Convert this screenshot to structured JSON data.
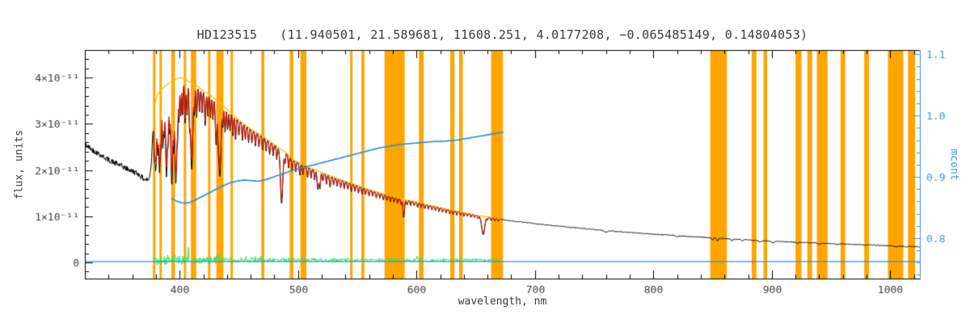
{
  "chart_data": {
    "type": "line",
    "title": "HD123515   (11.940501, 21.589681, 11608.251, 4.0177208, −0.065485149, 0.14804053)",
    "xlabel": "wavelength, nm",
    "ylabel_left": "flux, units",
    "ylabel_right": "mcont",
    "x_range": [
      320,
      1025
    ],
    "y_left_range": [
      -0.35,
      4.6
    ],
    "y_left_unit": "1e-11 flux units",
    "y_right_range": [
      0.734,
      1.107
    ],
    "x_major_ticks": [
      400,
      500,
      600,
      700,
      800,
      900,
      1000
    ],
    "x_minor_step": 20,
    "y_left_ticks": [
      {
        "value": 0,
        "label": "0"
      },
      {
        "value": 1,
        "label": "1×10⁻¹¹"
      },
      {
        "value": 2,
        "label": "2×10⁻¹¹"
      },
      {
        "value": 3,
        "label": "3×10⁻¹¹"
      },
      {
        "value": 4,
        "label": "4×10⁻¹¹"
      }
    ],
    "y_left_minor_step": 0.2,
    "y_right_ticks": [
      {
        "value": 0.8,
        "label": "0.8"
      },
      {
        "value": 0.9,
        "label": "0.9"
      },
      {
        "value": 1.0,
        "label": "1.0"
      },
      {
        "value": 1.1,
        "label": "1.1"
      }
    ],
    "y_right_minor_step": 0.02,
    "colors": {
      "observed": "#000000",
      "model": "#d81600",
      "continuum": "#f2c500",
      "residual": "#2ee65c",
      "mcont": "#2f8fdf",
      "right_axis": "#3a97e8",
      "mask": "#ffa500",
      "axis": "#000000",
      "axis_text": "#3c3c3c"
    },
    "series": [
      {
        "name": "observed-spectrum",
        "color": "#000000",
        "x_range": [
          320,
          1025
        ]
      },
      {
        "name": "model-fit",
        "color": "#d81600",
        "x_range": [
          378,
          671
        ]
      },
      {
        "name": "continuum-fit",
        "color": "#f2c500",
        "x_range": [
          378,
          671
        ]
      },
      {
        "name": "residual",
        "color": "#2ee65c",
        "x_range": [
          378,
          671
        ]
      },
      {
        "name": "mcont",
        "color": "#2f8fdf",
        "axis": "right",
        "x_range": [
          393,
          674
        ]
      },
      {
        "name": "zero-baseline",
        "color": "#2f8fdf",
        "x_range": [
          320,
          1025
        ]
      }
    ],
    "baseline_flux": 0.02,
    "model_range": [
      378,
      671
    ],
    "model_depth_factor": 0.88,
    "mask_bands": [
      [
        377.5,
        379.5
      ],
      [
        383,
        385
      ],
      [
        393,
        396
      ],
      [
        403.5,
        405.5
      ],
      [
        409.5,
        414
      ],
      [
        424,
        426
      ],
      [
        431,
        437
      ],
      [
        443,
        445
      ],
      [
        469,
        471.5
      ],
      [
        493,
        496
      ],
      [
        502,
        507
      ],
      [
        544,
        546
      ],
      [
        553.5,
        556
      ],
      [
        573,
        590
      ],
      [
        602,
        606
      ],
      [
        628.5,
        632
      ],
      [
        636,
        639
      ],
      [
        663,
        673
      ],
      [
        848,
        862
      ],
      [
        883,
        887
      ],
      [
        893,
        896
      ],
      [
        920,
        925
      ],
      [
        930,
        934
      ],
      [
        938,
        947
      ],
      [
        958,
        962
      ],
      [
        978,
        982
      ],
      [
        998,
        1011
      ],
      [
        1015,
        1021
      ]
    ],
    "continuum_anchors": [
      [
        320,
        2.55
      ],
      [
        330,
        2.38
      ],
      [
        340,
        2.22
      ],
      [
        350,
        2.1
      ],
      [
        358,
        2.0
      ],
      [
        365,
        1.92
      ],
      [
        370,
        1.8
      ],
      [
        374,
        1.78
      ],
      [
        376,
        2.1
      ],
      [
        377.5,
        2.9
      ],
      [
        379,
        3.4
      ],
      [
        381,
        3.6
      ],
      [
        384,
        3.72
      ],
      [
        388,
        3.8
      ],
      [
        392,
        3.88
      ],
      [
        396,
        3.94
      ],
      [
        400,
        3.98
      ],
      [
        404,
        3.96
      ],
      [
        408,
        3.9
      ],
      [
        412,
        3.84
      ],
      [
        416,
        3.78
      ],
      [
        420,
        3.7
      ],
      [
        425,
        3.62
      ],
      [
        430,
        3.52
      ],
      [
        435,
        3.42
      ],
      [
        440,
        3.3
      ],
      [
        445,
        3.18
      ],
      [
        450,
        3.07
      ],
      [
        455,
        2.97
      ],
      [
        460,
        2.88
      ],
      [
        465,
        2.8
      ],
      [
        470,
        2.72
      ],
      [
        475,
        2.63
      ],
      [
        480,
        2.54
      ],
      [
        485,
        2.45
      ],
      [
        490,
        2.36
      ],
      [
        495,
        2.22
      ],
      [
        500,
        2.16
      ],
      [
        505,
        2.1
      ],
      [
        510,
        2.04
      ],
      [
        515,
        1.99
      ],
      [
        520,
        1.94
      ],
      [
        525,
        1.89
      ],
      [
        530,
        1.84
      ],
      [
        535,
        1.79
      ],
      [
        540,
        1.75
      ],
      [
        545,
        1.7
      ],
      [
        550,
        1.66
      ],
      [
        555,
        1.61
      ],
      [
        560,
        1.57
      ],
      [
        565,
        1.53
      ],
      [
        570,
        1.49
      ],
      [
        575,
        1.45
      ],
      [
        580,
        1.42
      ],
      [
        585,
        1.38
      ],
      [
        590,
        1.35
      ],
      [
        595,
        1.33
      ],
      [
        600,
        1.3
      ],
      [
        605,
        1.27
      ],
      [
        610,
        1.24
      ],
      [
        615,
        1.21
      ],
      [
        620,
        1.18
      ],
      [
        625,
        1.15
      ],
      [
        630,
        1.12
      ],
      [
        635,
        1.1
      ],
      [
        640,
        1.07
      ],
      [
        645,
        1.05
      ],
      [
        650,
        1.02
      ],
      [
        655,
        1.0
      ],
      [
        660,
        0.98
      ],
      [
        665,
        0.96
      ],
      [
        670,
        0.94
      ],
      [
        675,
        0.92
      ],
      [
        680,
        0.9
      ],
      [
        690,
        0.87
      ],
      [
        700,
        0.84
      ],
      [
        710,
        0.81
      ],
      [
        720,
        0.79
      ],
      [
        730,
        0.76
      ],
      [
        740,
        0.74
      ],
      [
        750,
        0.71
      ],
      [
        760,
        0.69
      ],
      [
        770,
        0.67
      ],
      [
        780,
        0.65
      ],
      [
        790,
        0.63
      ],
      [
        800,
        0.61
      ],
      [
        810,
        0.6
      ],
      [
        820,
        0.58
      ],
      [
        830,
        0.56
      ],
      [
        840,
        0.55
      ],
      [
        850,
        0.53
      ],
      [
        860,
        0.52
      ],
      [
        870,
        0.5
      ],
      [
        880,
        0.49
      ],
      [
        890,
        0.47
      ],
      [
        900,
        0.46
      ],
      [
        910,
        0.45
      ],
      [
        920,
        0.44
      ],
      [
        930,
        0.43
      ],
      [
        940,
        0.42
      ],
      [
        950,
        0.41
      ],
      [
        960,
        0.4
      ],
      [
        970,
        0.39
      ],
      [
        980,
        0.38
      ],
      [
        990,
        0.37
      ],
      [
        1000,
        0.36
      ],
      [
        1010,
        0.35
      ],
      [
        1025,
        0.34
      ]
    ],
    "absorption_lines": [
      [
        378.8,
        0.3,
        0.7
      ],
      [
        380.0,
        0.42,
        0.9
      ],
      [
        381.5,
        0.3,
        0.7
      ],
      [
        383.0,
        0.48,
        1.0
      ],
      [
        384.3,
        0.28,
        0.6
      ],
      [
        385.8,
        0.35,
        0.8
      ],
      [
        387.0,
        0.25,
        0.6
      ],
      [
        388.9,
        0.52,
        1.1
      ],
      [
        390.3,
        0.28,
        0.6
      ],
      [
        391.5,
        0.25,
        0.6
      ],
      [
        393.4,
        0.58,
        1.2
      ],
      [
        395.0,
        0.28,
        0.6
      ],
      [
        396.8,
        0.58,
        1.2
      ],
      [
        398.3,
        0.25,
        0.6
      ],
      [
        399.5,
        0.22,
        0.6
      ],
      [
        401.0,
        0.22,
        0.6
      ],
      [
        402.5,
        0.2,
        0.6
      ],
      [
        404.6,
        0.24,
        0.7
      ],
      [
        406.3,
        0.2,
        0.6
      ],
      [
        408.4,
        0.22,
        0.7
      ],
      [
        410.2,
        0.48,
        1.3
      ],
      [
        412.5,
        0.15,
        0.6
      ],
      [
        414.4,
        0.18,
        0.6
      ],
      [
        416.8,
        0.14,
        0.6
      ],
      [
        419.0,
        0.13,
        0.6
      ],
      [
        421.6,
        0.2,
        0.7
      ],
      [
        423.8,
        0.14,
        0.6
      ],
      [
        426.0,
        0.13,
        0.6
      ],
      [
        428.0,
        0.14,
        0.6
      ],
      [
        430.8,
        0.28,
        0.9
      ],
      [
        432.6,
        0.18,
        0.7
      ],
      [
        434.0,
        0.46,
        1.3
      ],
      [
        436.5,
        0.13,
        0.6
      ],
      [
        438.4,
        0.16,
        0.6
      ],
      [
        440.5,
        0.13,
        0.6
      ],
      [
        442.5,
        0.12,
        0.6
      ],
      [
        445.0,
        0.14,
        0.6
      ],
      [
        447.2,
        0.16,
        0.6
      ],
      [
        450.0,
        0.11,
        0.6
      ],
      [
        453.0,
        0.12,
        0.6
      ],
      [
        455.5,
        0.1,
        0.6
      ],
      [
        458.2,
        0.11,
        0.6
      ],
      [
        461.0,
        0.1,
        0.6
      ],
      [
        464.0,
        0.11,
        0.6
      ],
      [
        467.0,
        0.1,
        0.6
      ],
      [
        470.0,
        0.11,
        0.6
      ],
      [
        473.0,
        0.1,
        0.6
      ],
      [
        476.0,
        0.11,
        0.6
      ],
      [
        479.0,
        0.1,
        0.6
      ],
      [
        482.0,
        0.11,
        0.6
      ],
      [
        486.1,
        0.48,
        1.4
      ],
      [
        489.0,
        0.1,
        0.6
      ],
      [
        492.0,
        0.12,
        0.6
      ],
      [
        495.0,
        0.1,
        0.6
      ],
      [
        498.0,
        0.11,
        0.6
      ],
      [
        501.5,
        0.12,
        0.7
      ],
      [
        504.2,
        0.1,
        0.6
      ],
      [
        508.0,
        0.11,
        0.6
      ],
      [
        511.0,
        0.1,
        0.6
      ],
      [
        514.0,
        0.11,
        0.6
      ],
      [
        516.7,
        0.2,
        0.9
      ],
      [
        518.4,
        0.18,
        0.8
      ],
      [
        521.0,
        0.09,
        0.6
      ],
      [
        524.0,
        0.11,
        0.6
      ],
      [
        527.0,
        0.13,
        0.7
      ],
      [
        530.0,
        0.09,
        0.6
      ],
      [
        533.0,
        0.1,
        0.6
      ],
      [
        536.0,
        0.09,
        0.6
      ],
      [
        539.0,
        0.1,
        0.6
      ],
      [
        542.0,
        0.09,
        0.6
      ],
      [
        545.0,
        0.1,
        0.6
      ],
      [
        548.0,
        0.09,
        0.6
      ],
      [
        551.0,
        0.09,
        0.6
      ],
      [
        554.0,
        0.09,
        0.6
      ],
      [
        557.0,
        0.08,
        0.6
      ],
      [
        560.0,
        0.09,
        0.6
      ],
      [
        563.0,
        0.08,
        0.6
      ],
      [
        566.0,
        0.08,
        0.6
      ],
      [
        569.0,
        0.08,
        0.6
      ],
      [
        572.0,
        0.08,
        0.6
      ],
      [
        575.0,
        0.08,
        0.6
      ],
      [
        578.0,
        0.08,
        0.6
      ],
      [
        581.0,
        0.08,
        0.6
      ],
      [
        584.0,
        0.08,
        0.6
      ],
      [
        587.0,
        0.09,
        0.6
      ],
      [
        589.2,
        0.28,
        0.9
      ],
      [
        592.0,
        0.08,
        0.6
      ],
      [
        595.0,
        0.08,
        0.6
      ],
      [
        598.0,
        0.07,
        0.6
      ],
      [
        601.0,
        0.08,
        0.6
      ],
      [
        604.0,
        0.07,
        0.6
      ],
      [
        607.0,
        0.08,
        0.6
      ],
      [
        610.0,
        0.07,
        0.6
      ],
      [
        613.0,
        0.07,
        0.6
      ],
      [
        616.0,
        0.07,
        0.6
      ],
      [
        619.0,
        0.07,
        0.6
      ],
      [
        622.0,
        0.07,
        0.6
      ],
      [
        625.0,
        0.07,
        0.6
      ],
      [
        628.0,
        0.07,
        0.6
      ],
      [
        631.0,
        0.07,
        0.6
      ],
      [
        634.0,
        0.07,
        0.6
      ],
      [
        637.0,
        0.07,
        0.6
      ],
      [
        640.0,
        0.07,
        0.6
      ],
      [
        643.0,
        0.06,
        0.6
      ],
      [
        646.0,
        0.06,
        0.6
      ],
      [
        649.0,
        0.06,
        0.6
      ],
      [
        652.0,
        0.06,
        0.6
      ],
      [
        656.3,
        0.4,
        1.8
      ],
      [
        660.0,
        0.06,
        0.6
      ],
      [
        663.0,
        0.06,
        0.6
      ],
      [
        666.0,
        0.06,
        0.6
      ],
      [
        669.0,
        0.06,
        0.6
      ],
      [
        760,
        0.05,
        2.0
      ],
      [
        820,
        0.04,
        1.5
      ],
      [
        849.8,
        0.09,
        1.0
      ],
      [
        854.2,
        0.11,
        1.0
      ],
      [
        866.2,
        0.09,
        1.0
      ],
      [
        875,
        0.05,
        1.2
      ],
      [
        890,
        0.06,
        1.2
      ],
      [
        901,
        0.07,
        1.5
      ],
      [
        922,
        0.05,
        1.5
      ],
      [
        940,
        0.05,
        1.8
      ],
      [
        955,
        0.05,
        1.8
      ],
      [
        1005,
        0.04,
        1.8
      ],
      [
        1013,
        0.05,
        1.2
      ]
    ],
    "residual": {
      "x_range": [
        378,
        671
      ],
      "base": 0.05,
      "amp_anchors": [
        [
          378,
          0.14
        ],
        [
          390,
          0.13
        ],
        [
          405,
          0.1
        ],
        [
          420,
          0.08
        ],
        [
          440,
          0.07
        ],
        [
          460,
          0.06
        ],
        [
          490,
          0.05
        ],
        [
          520,
          0.045
        ],
        [
          560,
          0.04
        ],
        [
          600,
          0.04
        ],
        [
          640,
          0.035
        ],
        [
          671,
          0.035
        ]
      ]
    },
    "mcont_anchors": [
      [
        393,
        0.865
      ],
      [
        398,
        0.86
      ],
      [
        403,
        0.857
      ],
      [
        408,
        0.858
      ],
      [
        413,
        0.862
      ],
      [
        418,
        0.867
      ],
      [
        424,
        0.873
      ],
      [
        430,
        0.879
      ],
      [
        436,
        0.885
      ],
      [
        442,
        0.89
      ],
      [
        448,
        0.893
      ],
      [
        454,
        0.895
      ],
      [
        460,
        0.894
      ],
      [
        466,
        0.893
      ],
      [
        472,
        0.895
      ],
      [
        478,
        0.899
      ],
      [
        484,
        0.903
      ],
      [
        490,
        0.907
      ],
      [
        496,
        0.911
      ],
      [
        502,
        0.914
      ],
      [
        508,
        0.917
      ],
      [
        514,
        0.92
      ],
      [
        520,
        0.923
      ],
      [
        526,
        0.926
      ],
      [
        532,
        0.929
      ],
      [
        538,
        0.932
      ],
      [
        544,
        0.935
      ],
      [
        550,
        0.938
      ],
      [
        556,
        0.941
      ],
      [
        562,
        0.944
      ],
      [
        568,
        0.947
      ],
      [
        574,
        0.949
      ],
      [
        580,
        0.951
      ],
      [
        586,
        0.953
      ],
      [
        592,
        0.954
      ],
      [
        598,
        0.955
      ],
      [
        604,
        0.956
      ],
      [
        610,
        0.957
      ],
      [
        616,
        0.958
      ],
      [
        622,
        0.958
      ],
      [
        628,
        0.959
      ],
      [
        634,
        0.96
      ],
      [
        640,
        0.962
      ],
      [
        646,
        0.964
      ],
      [
        652,
        0.966
      ],
      [
        658,
        0.968
      ],
      [
        664,
        0.97
      ],
      [
        670,
        0.972
      ],
      [
        674,
        0.973
      ]
    ],
    "noise": {
      "seed": 42,
      "uv_amp": 0.06,
      "uv_dense_amp": 0.045,
      "general_amp": 0.009,
      "model_amp": 0.003
    }
  }
}
